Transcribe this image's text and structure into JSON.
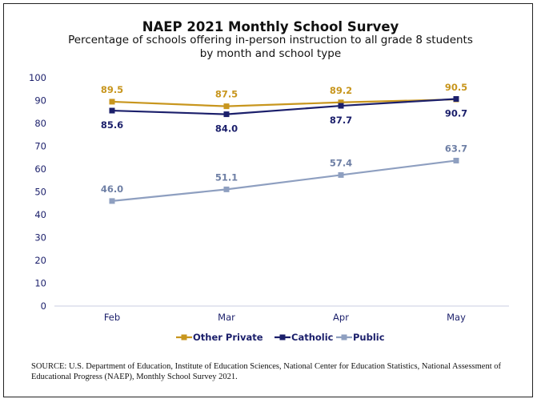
{
  "chart_data": {
    "type": "line",
    "title": "NAEP 2021 Monthly School Survey",
    "subtitle_line1": "Percentage of schools offering in-person instruction to all grade 8 students",
    "subtitle_line2": "by month and school type",
    "categories": [
      "Feb",
      "Mar",
      "Apr",
      "May"
    ],
    "y_ticks": [
      "0",
      "10",
      "20",
      "30",
      "40",
      "50",
      "60",
      "70",
      "80",
      "90",
      "100"
    ],
    "ylim": [
      0,
      100
    ],
    "grid": false,
    "legend_position": "bottom",
    "series": [
      {
        "name": "Other Private",
        "color": "#C8961E",
        "values": [
          89.5,
          87.5,
          89.2,
          90.5
        ],
        "labels": [
          "89.5",
          "87.5",
          "89.2",
          "90.5"
        ],
        "label_pos": "above"
      },
      {
        "name": "Catholic",
        "color": "#1B1F6B",
        "values": [
          85.6,
          84.0,
          87.7,
          90.7
        ],
        "labels": [
          "85.6",
          "84.0",
          "87.7",
          "90.7"
        ],
        "label_pos": "below"
      },
      {
        "name": "Public",
        "color": "#8E9FC0",
        "values": [
          46.0,
          51.1,
          57.4,
          63.7
        ],
        "labels": [
          "46.0",
          "51.1",
          "57.4",
          "63.7"
        ],
        "label_pos": "above",
        "label_color": "#6E7FA5"
      }
    ]
  },
  "source": "SOURCE: U.S. Department of Education, Institute of Education Sciences, National Center for Education Statistics, National Assessment of Educational Progress (NAEP), Monthly School Survey 2021."
}
